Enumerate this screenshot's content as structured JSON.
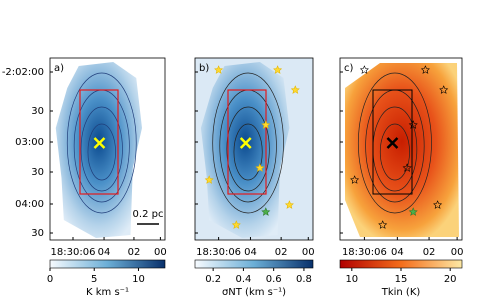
{
  "figure": {
    "y_tick_labels": [
      "-2:02:00",
      "30",
      "03:00",
      "30",
      "04:00",
      "30"
    ],
    "panels": [
      {
        "label": "a)",
        "x_tick_labels": [
          "18:30:06",
          "04",
          "02",
          "00"
        ],
        "scale_bar": "0.2 pc",
        "colorbar": {
          "label": "K km s⁻¹",
          "lim": [
            0,
            13
          ],
          "ticks": [
            0,
            5,
            10
          ],
          "colors": [
            "#f7fbff",
            "#6baed6",
            "#08306b"
          ]
        }
      },
      {
        "label": "b)",
        "x_tick_labels": [
          "18:30:06",
          "04",
          "02",
          "00"
        ],
        "colorbar": {
          "label": "σNT (km s⁻¹)",
          "lim": [
            0.08,
            0.86
          ],
          "ticks": [
            0.2,
            0.4,
            0.6,
            0.8
          ],
          "colors": [
            "#f7fbff",
            "#6baed6",
            "#08306b"
          ]
        }
      },
      {
        "label": "c)",
        "x_tick_labels": [
          "18:30:06",
          "04",
          "02",
          "00"
        ],
        "colorbar": {
          "label": "Tkin (K)",
          "lim": [
            8.8,
            21.2
          ],
          "ticks": [
            10,
            15,
            20
          ],
          "colors": [
            "#b10000",
            "#f46d1b",
            "#fde9a5"
          ]
        }
      }
    ]
  }
}
